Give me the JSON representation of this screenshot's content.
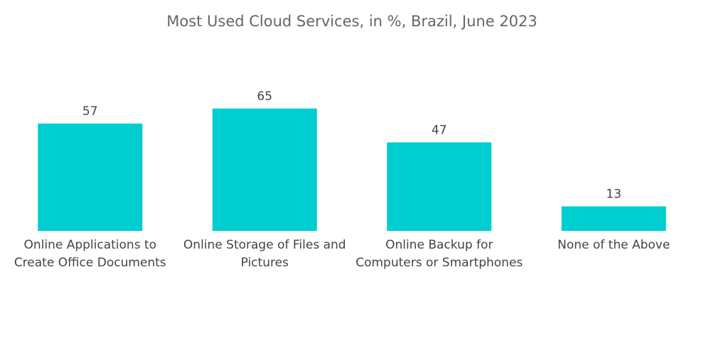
{
  "chart_data": {
    "type": "bar",
    "title": "Most Used Cloud Services, in %, Brazil, June 2023",
    "categories": [
      "Online Applications to Create Office Documents",
      "Online Storage of Files and Pictures",
      "Online Backup for Computers or Smartphones",
      "None of the Above"
    ],
    "values": [
      57,
      65,
      47,
      13
    ],
    "color": "#00cdd0"
  }
}
